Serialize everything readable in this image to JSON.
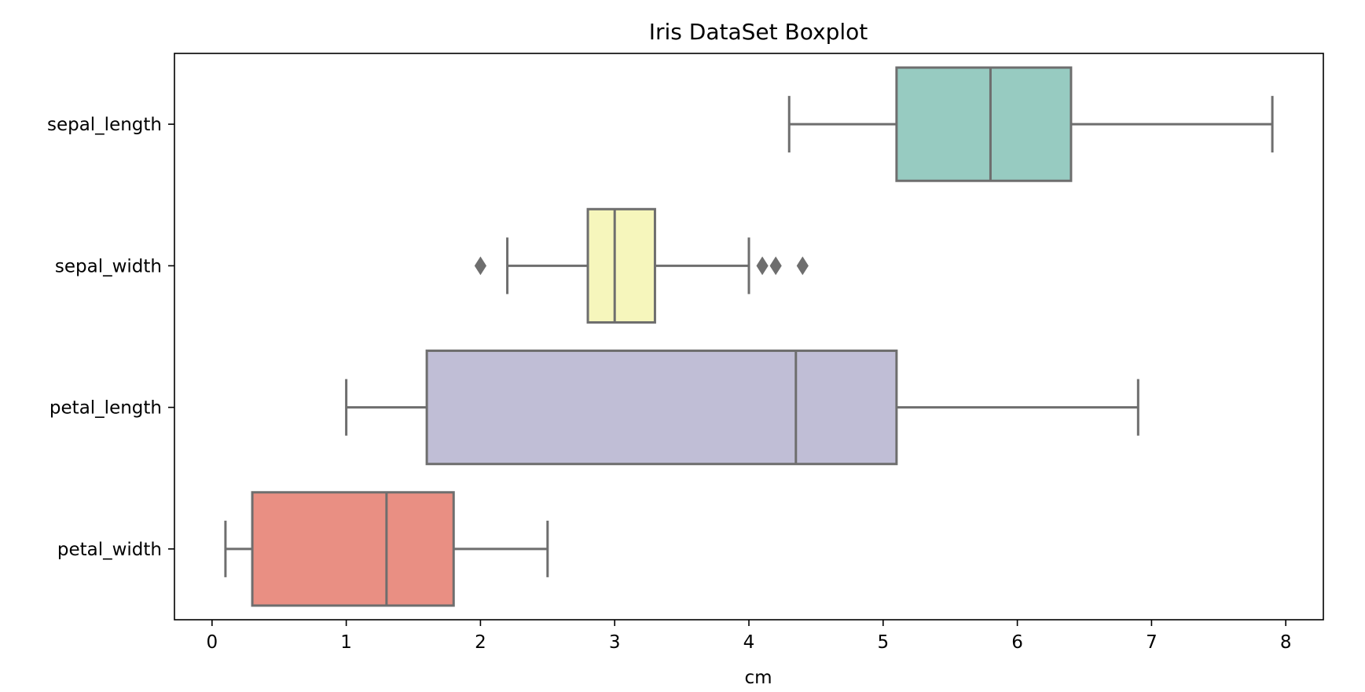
{
  "chart_data": {
    "type": "boxplot",
    "orientation": "horizontal",
    "title": "Iris DataSet Boxplot",
    "xlabel": "cm",
    "ylabel": "",
    "xlim": [
      -0.28,
      8.28
    ],
    "xticks": [
      0,
      1,
      2,
      3,
      4,
      5,
      6,
      7,
      8
    ],
    "grid": false,
    "legend": "none",
    "colors": {
      "outline": "#6e6e6e",
      "frame": "#000000"
    },
    "series": [
      {
        "name": "sepal_length",
        "color": "#97cbc1",
        "whisker_low": 4.3,
        "q1": 5.1,
        "median": 5.8,
        "q3": 6.4,
        "whisker_high": 7.9,
        "outliers": []
      },
      {
        "name": "sepal_width",
        "color": "#f6f6bc",
        "whisker_low": 2.2,
        "q1": 2.8,
        "median": 3.0,
        "q3": 3.3,
        "whisker_high": 4.0,
        "outliers": [
          2.0,
          4.1,
          4.2,
          4.4
        ]
      },
      {
        "name": "petal_length",
        "color": "#c0bed6",
        "whisker_low": 1.0,
        "q1": 1.6,
        "median": 4.35,
        "q3": 5.1,
        "whisker_high": 6.9,
        "outliers": []
      },
      {
        "name": "petal_width",
        "color": "#e98f83",
        "whisker_low": 0.1,
        "q1": 0.3,
        "median": 1.3,
        "q3": 1.8,
        "whisker_high": 2.5,
        "outliers": []
      }
    ]
  }
}
